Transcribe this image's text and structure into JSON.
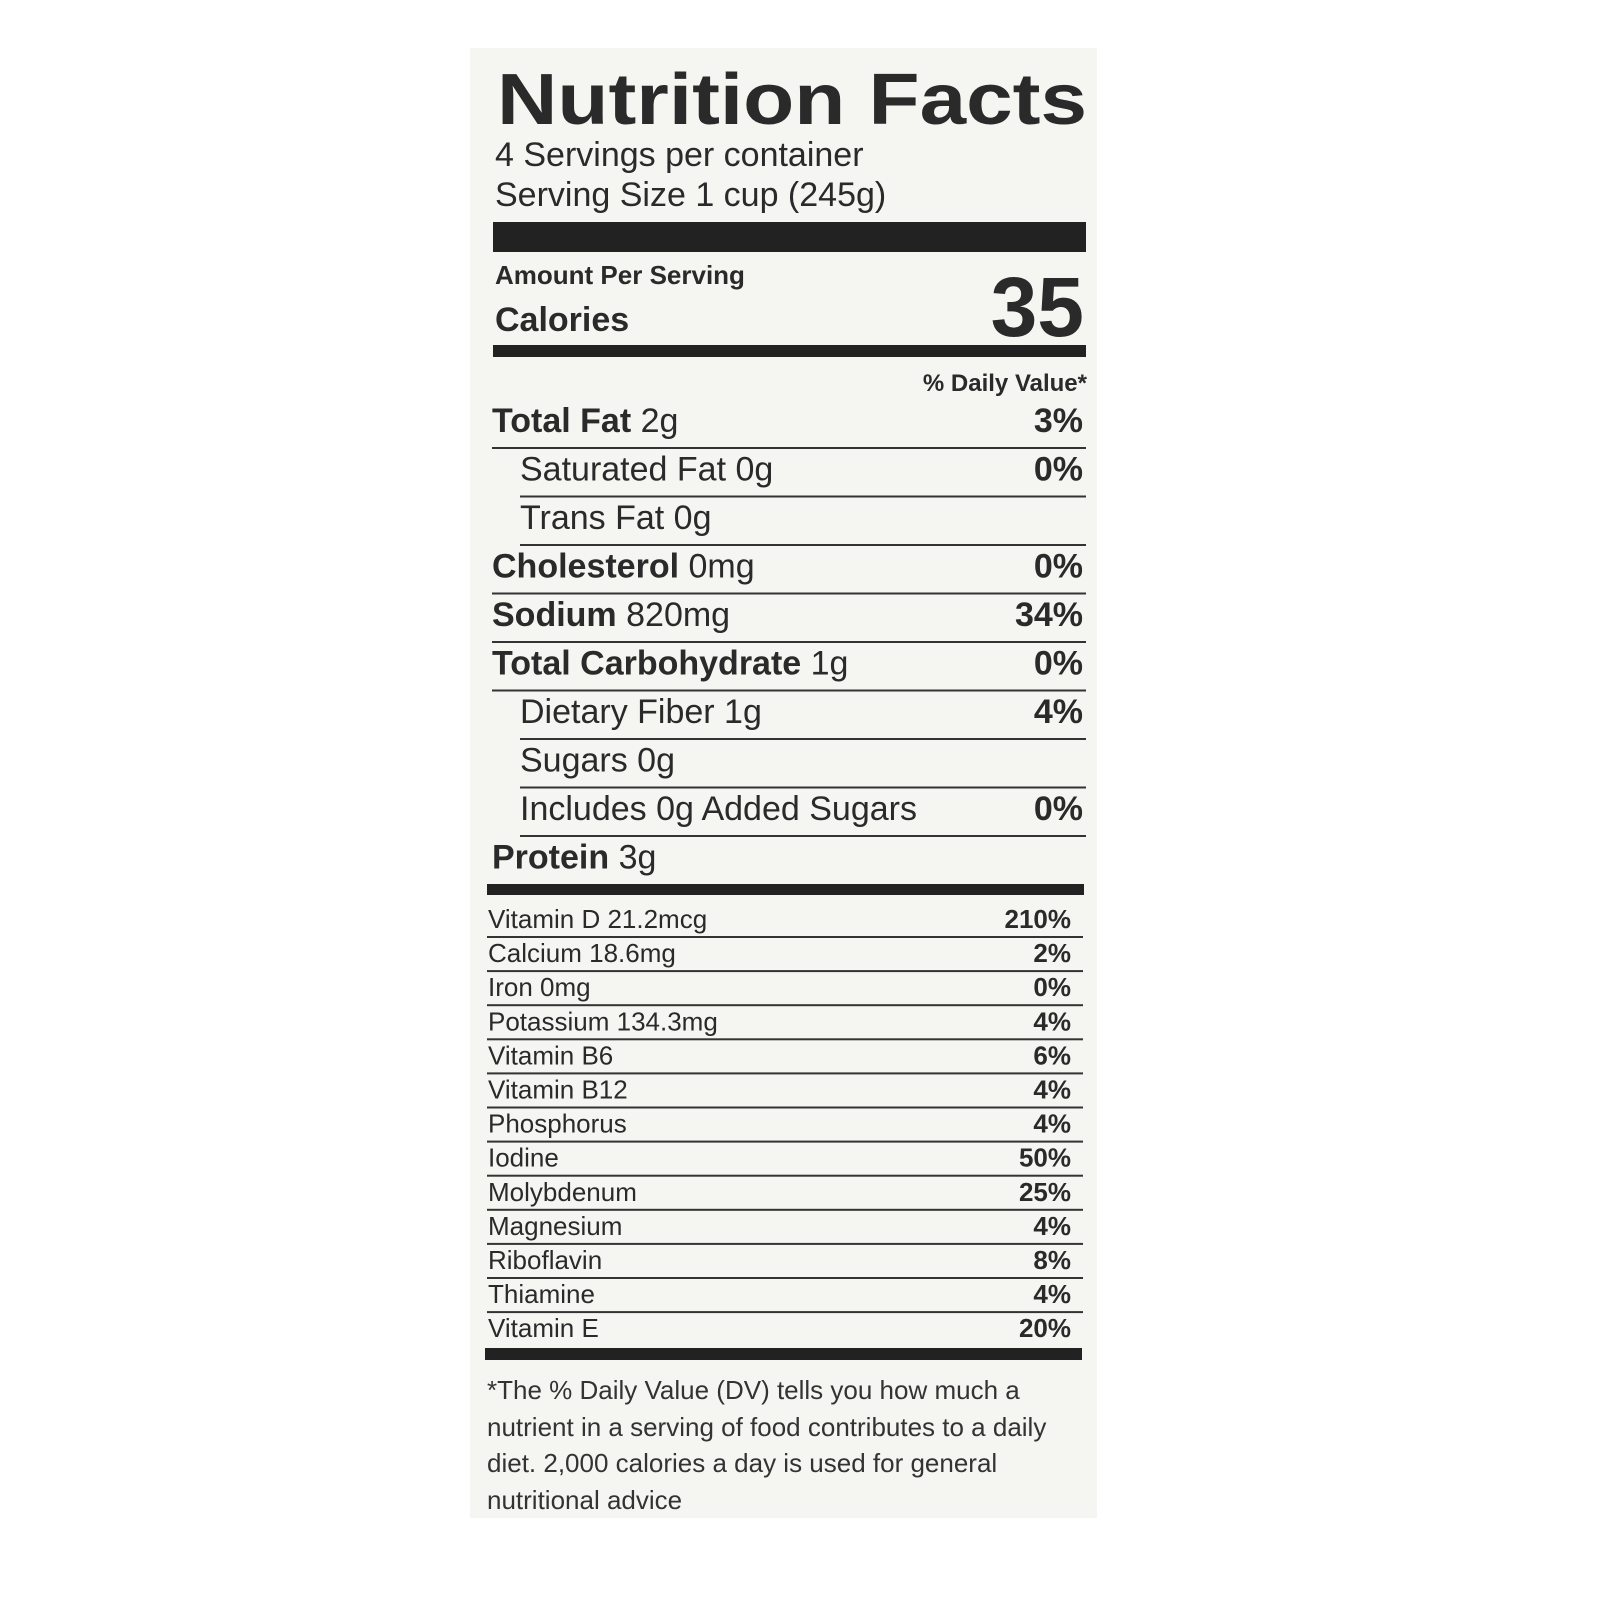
{
  "title": "Nutrition Facts",
  "servings": "4 Servings per container",
  "serving_size": "Serving Size 1 cup (245g)",
  "amount_per_serving": "Amount Per Serving",
  "calories": {
    "label": "Calories",
    "value": "35"
  },
  "dv_header": "% Daily Value*",
  "nutrients": [
    {
      "name": "Total Fat",
      "amount": "2g",
      "dv": "3%",
      "sub_items": [
        {
          "text": "Saturated Fat 0g",
          "dv": "0%"
        },
        {
          "text": "Trans Fat 0g"
        }
      ]
    },
    {
      "name": "Cholesterol",
      "amount": "0mg",
      "dv": "0%"
    },
    {
      "name": "Sodium",
      "amount": "820mg",
      "dv": "34%"
    },
    {
      "name": "Total Carbohydrate",
      "amount": "1g",
      "dv": "0%",
      "sub_items": [
        {
          "text": "Dietary Fiber 1g",
          "dv": "4%"
        },
        {
          "text": "Sugars 0g"
        },
        {
          "text": "Includes 0g Added Sugars",
          "dv": "0%"
        }
      ]
    },
    {
      "name": "Protein",
      "amount": "3g"
    }
  ],
  "vitamins": [
    {
      "name": "Vitamin D 21.2mcg",
      "dv": "210%"
    },
    {
      "name": "Calcium 18.6mg",
      "dv": "2%"
    },
    {
      "name": "Iron 0mg",
      "dv": "0%"
    },
    {
      "name": "Potassium 134.3mg",
      "dv": "4%"
    },
    {
      "name": "Vitamin B6",
      "dv": "6%"
    },
    {
      "name": "Vitamin B12",
      "dv": "4%"
    },
    {
      "name": "Phosphorus",
      "dv": "4%"
    },
    {
      "name": "Iodine",
      "dv": "50%"
    },
    {
      "name": "Molybdenum",
      "dv": "25%"
    },
    {
      "name": "Magnesium",
      "dv": "4%"
    },
    {
      "name": "Riboflavin",
      "dv": "8%"
    },
    {
      "name": "Thiamine",
      "dv": "4%"
    },
    {
      "name": "Vitamin E",
      "dv": "20%"
    }
  ],
  "footnote": "*The % Daily Value (DV) tells you how much a nutrient in a serving of food contributes to a daily diet. 2,000 calories a day is used for general nutritional advice"
}
